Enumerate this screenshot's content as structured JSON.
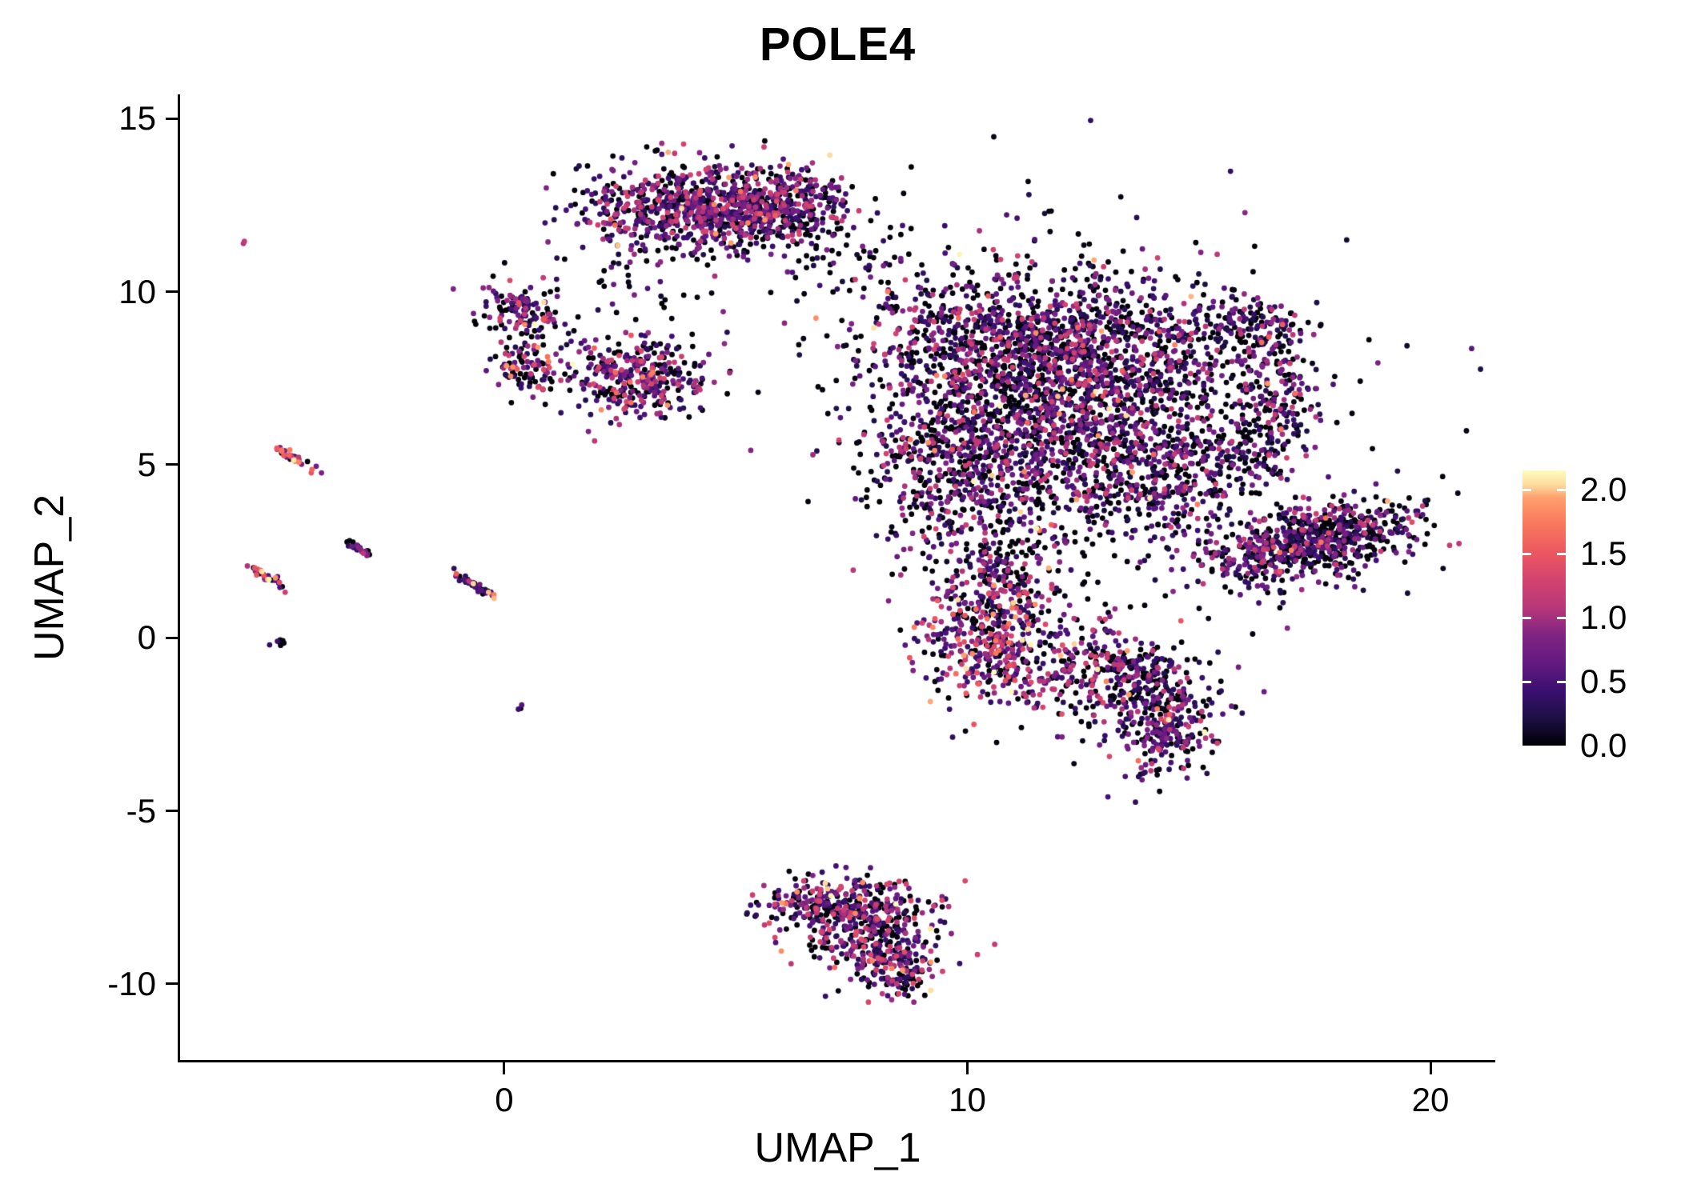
{
  "figure": {
    "background": "#ffffff",
    "axis_color": "#000000",
    "text_color": "#000000"
  },
  "chart_data": {
    "type": "scatter",
    "title": "POLE4",
    "xlabel": "UMAP_1",
    "ylabel": "UMAP_2",
    "xlim": [
      -7.0,
      21.4
    ],
    "ylim": [
      -12.2,
      15.7
    ],
    "x_ticks": [
      {
        "v": 0,
        "label": "0"
      },
      {
        "v": 10,
        "label": "10"
      },
      {
        "v": 20,
        "label": "20"
      }
    ],
    "y_ticks": [
      {
        "v": 15,
        "label": "15"
      },
      {
        "v": 10,
        "label": "10"
      },
      {
        "v": 5,
        "label": "5"
      },
      {
        "v": 0,
        "label": "0"
      },
      {
        "v": -5,
        "label": "-5"
      },
      {
        "v": -10,
        "label": "-10"
      }
    ],
    "grid": false,
    "legend": {
      "position": "right",
      "vmin": 0.0,
      "vmax": 2.15,
      "ticks": [
        {
          "v": 2.0,
          "label": "2.0"
        },
        {
          "v": 1.5,
          "label": "1.5"
        },
        {
          "v": 1.0,
          "label": "1.0"
        },
        {
          "v": 0.5,
          "label": "0.5"
        },
        {
          "v": 0.0,
          "label": "0.0"
        }
      ]
    },
    "colormap": {
      "name": "magma",
      "stops": [
        {
          "t": 0.0,
          "color": "#000004"
        },
        {
          "t": 0.1,
          "color": "#1c1044"
        },
        {
          "t": 0.2,
          "color": "#3b0f70"
        },
        {
          "t": 0.3,
          "color": "#641a80"
        },
        {
          "t": 0.4,
          "color": "#7e2482"
        },
        {
          "t": 0.5,
          "color": "#b73779"
        },
        {
          "t": 0.6,
          "color": "#d3436e"
        },
        {
          "t": 0.7,
          "color": "#eb5760"
        },
        {
          "t": 0.8,
          "color": "#f8765c"
        },
        {
          "t": 0.9,
          "color": "#fe9f6d"
        },
        {
          "t": 0.95,
          "color": "#fddea0"
        },
        {
          "t": 1.0,
          "color": "#fcfdbf"
        }
      ]
    },
    "point_radius_px": 3.4,
    "seed": 42,
    "clusters": [
      {
        "name": "main-a",
        "cx": 10.4,
        "cy": 8.6,
        "sx": 1.35,
        "sy": 1.1,
        "angle": 0,
        "n": 650,
        "expr": {
          "p0": 0.38,
          "lo": 0.2,
          "hi": 1.3,
          "hot": 0.035
        }
      },
      {
        "name": "main-b",
        "cx": 13.0,
        "cy": 8.2,
        "sx": 1.4,
        "sy": 1.15,
        "angle": 0,
        "n": 750,
        "expr": {
          "p0": 0.38,
          "lo": 0.2,
          "hi": 1.3,
          "hot": 0.035
        }
      },
      {
        "name": "main-c",
        "cx": 11.8,
        "cy": 5.6,
        "sx": 1.7,
        "sy": 1.4,
        "angle": 0,
        "n": 850,
        "expr": {
          "p0": 0.38,
          "lo": 0.2,
          "hi": 1.3,
          "hot": 0.035
        }
      },
      {
        "name": "main-d",
        "cx": 9.6,
        "cy": 5.1,
        "sx": 0.95,
        "sy": 1.25,
        "angle": 0,
        "n": 380,
        "expr": {
          "p0": 0.38,
          "lo": 0.2,
          "hi": 1.3,
          "hot": 0.035
        }
      },
      {
        "name": "main-e",
        "cx": 14.4,
        "cy": 4.9,
        "sx": 1.15,
        "sy": 0.95,
        "angle": 0,
        "n": 320,
        "expr": {
          "p0": 0.38,
          "lo": 0.2,
          "hi": 1.3,
          "hot": 0.035
        }
      },
      {
        "name": "main-halo",
        "cx": 12.0,
        "cy": 6.6,
        "sx": 2.9,
        "sy": 2.5,
        "angle": 0,
        "n": 430,
        "expr": {
          "p0": 0.6,
          "lo": 0.12,
          "hi": 0.9,
          "hot": 0.01
        }
      },
      {
        "name": "arm-top",
        "cx": 16.0,
        "cy": 8.9,
        "sx": 0.6,
        "sy": 0.55,
        "angle": 0,
        "n": 150,
        "expr": {
          "p0": 0.42,
          "lo": 0.2,
          "hi": 1.2,
          "hot": 0.03
        }
      },
      {
        "name": "arm-side",
        "cx": 16.7,
        "cy": 7.1,
        "sx": 0.45,
        "sy": 0.85,
        "angle": 0,
        "n": 160,
        "expr": {
          "p0": 0.42,
          "lo": 0.2,
          "hi": 1.2,
          "hot": 0.03
        }
      },
      {
        "name": "arm-sparse",
        "cx": 16.2,
        "cy": 5.6,
        "sx": 0.55,
        "sy": 0.6,
        "angle": 0,
        "n": 60,
        "expr": {
          "p0": 0.55,
          "lo": 0.15,
          "hi": 1.0,
          "hot": 0.02
        }
      },
      {
        "name": "band-right",
        "cx": 17.35,
        "cy": 2.75,
        "sx": 1.2,
        "sy": 0.5,
        "angle": 17,
        "n": 640,
        "expr": {
          "p0": 0.42,
          "lo": 0.2,
          "hi": 1.25,
          "hot": 0.03
        }
      },
      {
        "name": "band-halo",
        "cx": 17.2,
        "cy": 2.6,
        "sx": 1.7,
        "sy": 0.8,
        "angle": 17,
        "n": 90,
        "expr": {
          "p0": 0.6,
          "lo": 0.12,
          "hi": 0.9,
          "hot": 0.01
        }
      },
      {
        "name": "neck",
        "cx": 10.6,
        "cy": -0.05,
        "sx": 0.8,
        "sy": 0.95,
        "angle": 0,
        "n": 470,
        "expr": {
          "p0": 0.28,
          "lo": 0.3,
          "hi": 1.5,
          "hot": 0.1
        }
      },
      {
        "name": "neck-bridge",
        "cx": 10.9,
        "cy": 1.7,
        "sx": 0.6,
        "sy": 0.7,
        "angle": 0,
        "n": 130,
        "expr": {
          "p0": 0.45,
          "lo": 0.2,
          "hi": 1.2,
          "hot": 0.04
        }
      },
      {
        "name": "lobe-a",
        "cx": 13.4,
        "cy": -1.15,
        "sx": 0.95,
        "sy": 0.8,
        "angle": 0,
        "n": 360,
        "expr": {
          "p0": 0.35,
          "lo": 0.25,
          "hi": 1.35,
          "hot": 0.05
        }
      },
      {
        "name": "lobe-b",
        "cx": 14.3,
        "cy": -2.6,
        "sx": 0.6,
        "sy": 0.7,
        "angle": 0,
        "n": 230,
        "expr": {
          "p0": 0.35,
          "lo": 0.25,
          "hi": 1.35,
          "hot": 0.05
        }
      },
      {
        "name": "top-main",
        "cx": 4.35,
        "cy": 12.4,
        "sx": 1.25,
        "sy": 0.6,
        "angle": 0,
        "n": 780,
        "expr": {
          "p0": 0.3,
          "lo": 0.25,
          "hi": 1.3,
          "hot": 0.025
        }
      },
      {
        "name": "top-right-lobe",
        "cx": 6.4,
        "cy": 12.6,
        "sx": 0.55,
        "sy": 0.5,
        "angle": 0,
        "n": 140,
        "expr": {
          "p0": 0.3,
          "lo": 0.25,
          "hi": 1.3,
          "hot": 0.025
        }
      },
      {
        "name": "top-halo",
        "cx": 4.6,
        "cy": 12.1,
        "sx": 1.9,
        "sy": 1.0,
        "angle": 0,
        "n": 190,
        "expr": {
          "p0": 0.55,
          "lo": 0.15,
          "hi": 1.0,
          "hot": 0.01
        }
      },
      {
        "name": "top-bridge",
        "cx": 7.7,
        "cy": 10.8,
        "sx": 0.95,
        "sy": 0.75,
        "angle": 0,
        "n": 55,
        "expr": {
          "p0": 0.6,
          "lo": 0.15,
          "hi": 0.9,
          "hot": 0.01
        }
      },
      {
        "name": "mid-sparse",
        "cx": 2.9,
        "cy": 10.2,
        "sx": 0.8,
        "sy": 0.6,
        "angle": 0,
        "n": 25,
        "expr": {
          "p0": 0.6,
          "lo": 0.15,
          "hi": 0.9,
          "hot": 0.01
        }
      },
      {
        "name": "left-small-a",
        "cx": 0.3,
        "cy": 9.5,
        "sx": 0.42,
        "sy": 0.38,
        "angle": 0,
        "n": 115,
        "expr": {
          "p0": 0.32,
          "lo": 0.25,
          "hi": 1.35,
          "hot": 0.05
        }
      },
      {
        "name": "left-small-brg",
        "cx": 0.85,
        "cy": 8.8,
        "sx": 0.5,
        "sy": 0.45,
        "angle": 0,
        "n": 20,
        "expr": {
          "p0": 0.6,
          "lo": 0.15,
          "hi": 0.9,
          "hot": 0.01
        }
      },
      {
        "name": "left-small-b",
        "cx": 0.45,
        "cy": 7.85,
        "sx": 0.36,
        "sy": 0.46,
        "angle": 0,
        "n": 90,
        "expr": {
          "p0": 0.3,
          "lo": 0.25,
          "hi": 1.4,
          "hot": 0.08
        }
      },
      {
        "name": "midleft",
        "cx": 2.9,
        "cy": 7.5,
        "sx": 0.75,
        "sy": 0.62,
        "angle": 0,
        "n": 340,
        "expr": {
          "p0": 0.28,
          "lo": 0.25,
          "hi": 1.4,
          "hot": 0.07
        }
      },
      {
        "name": "bottom-a",
        "cx": 7.15,
        "cy": -7.65,
        "sx": 0.85,
        "sy": 0.42,
        "angle": 0,
        "n": 280,
        "expr": {
          "p0": 0.33,
          "lo": 0.25,
          "hi": 1.4,
          "hot": 0.06
        }
      },
      {
        "name": "bottom-b",
        "cx": 8.0,
        "cy": -8.6,
        "sx": 0.75,
        "sy": 0.68,
        "angle": 0,
        "n": 280,
        "expr": {
          "p0": 0.33,
          "lo": 0.25,
          "hi": 1.4,
          "hot": 0.06
        }
      },
      {
        "name": "bottom-c",
        "cx": 8.55,
        "cy": -9.6,
        "sx": 0.38,
        "sy": 0.45,
        "angle": 0,
        "n": 95,
        "expr": {
          "p0": 0.33,
          "lo": 0.25,
          "hi": 1.4,
          "hot": 0.06
        }
      },
      {
        "name": "streak-1",
        "cx": -4.55,
        "cy": 5.2,
        "sx": 0.26,
        "sy": 0.05,
        "angle": -38,
        "n": 36,
        "expr": {
          "p0": 0.15,
          "lo": 0.5,
          "hi": 1.9,
          "hot": 0.25
        }
      },
      {
        "name": "streak-2",
        "cx": -3.1,
        "cy": 2.55,
        "sx": 0.2,
        "sy": 0.045,
        "angle": -38,
        "n": 28,
        "expr": {
          "p0": 0.4,
          "lo": 0.2,
          "hi": 1.1,
          "hot": 0.06
        }
      },
      {
        "name": "streak-3",
        "cx": -5.1,
        "cy": 1.75,
        "sx": 0.24,
        "sy": 0.05,
        "angle": -38,
        "n": 33,
        "expr": {
          "p0": 0.2,
          "lo": 0.4,
          "hi": 1.7,
          "hot": 0.2
        }
      },
      {
        "name": "streak-4",
        "cx": -0.6,
        "cy": 1.5,
        "sx": 0.32,
        "sy": 0.05,
        "angle": -38,
        "n": 46,
        "expr": {
          "p0": 0.45,
          "lo": 0.15,
          "hi": 1.2,
          "hot": 0.15
        }
      },
      {
        "name": "dot-a",
        "cx": -4.85,
        "cy": -0.1,
        "sx": 0.09,
        "sy": 0.07,
        "angle": 0,
        "n": 11,
        "expr": {
          "p0": 0.75,
          "lo": 0.1,
          "hi": 0.5,
          "hot": 0.0
        }
      },
      {
        "name": "dot-b",
        "cx": 0.35,
        "cy": -2.05,
        "sx": 0.05,
        "sy": 0.05,
        "angle": 0,
        "n": 3,
        "expr": {
          "p0": 0.5,
          "lo": 0.2,
          "hi": 0.8,
          "hot": 0.0
        }
      },
      {
        "name": "dot-c",
        "cx": -5.6,
        "cy": 11.4,
        "sx": 0.05,
        "sy": 0.04,
        "angle": 0,
        "n": 2,
        "expr": {
          "p0": 0.0,
          "lo": 0.8,
          "hi": 1.3,
          "hot": 0.0
        }
      }
    ]
  }
}
